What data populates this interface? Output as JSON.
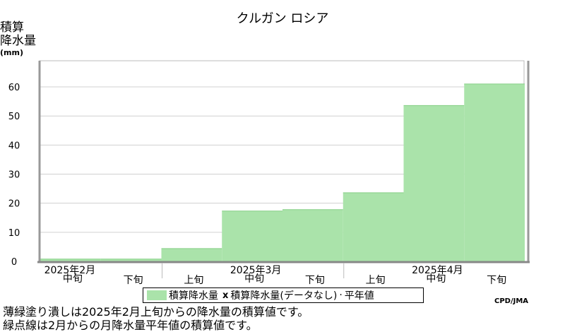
{
  "title": "クルガン ロシア",
  "ylabel_lines": [
    "積算",
    "降水量"
  ],
  "yunit": "(mm)",
  "chart_data": {
    "type": "bar",
    "yticks": [
      0,
      10,
      20,
      30,
      40,
      50,
      60
    ],
    "ylim": [
      0,
      69
    ],
    "grid": true,
    "categories": [
      "2025年2月中旬",
      "2025年2月下旬",
      "2025年3月上旬",
      "2025年3月中旬",
      "2025年3月下旬",
      "2025年4月上旬",
      "2025年4月中旬",
      "2025年4月下旬"
    ],
    "series": [
      {
        "name": "積算降水量",
        "values": [
          0.8,
          0.8,
          4.4,
          17.3,
          17.8,
          23.6,
          53.6,
          61.0
        ]
      }
    ],
    "month_labels": [
      "2025年2月",
      "2025年3月",
      "2025年4月"
    ],
    "dekad_labels": [
      "中旬",
      "下旬",
      "上旬",
      "中旬",
      "下旬",
      "上旬",
      "中旬",
      "下旬"
    ]
  },
  "legend": {
    "item1": "積算降水量",
    "marker2": "x",
    "item2": "積算降水量(データなし)",
    "marker3": "·",
    "item3": "平年値"
  },
  "credit": "CPD/JMA",
  "note_line1": "薄緑塗り潰しは2025年2月上旬からの降水量の積算値です。",
  "note_line2": "緑点線は2月からの月降水量平年値の積算値です。",
  "colors": {
    "bar": "#aae3aa",
    "bar_edge": "#86cf86",
    "grid": "#d0d0d0",
    "axis": "#999999"
  }
}
